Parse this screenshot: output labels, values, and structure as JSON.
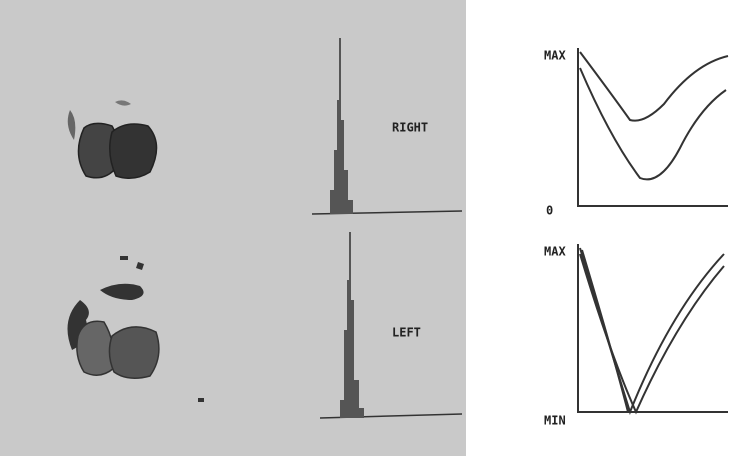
{
  "panels": {
    "right_label": "RIGHT",
    "left_label": "LEFT"
  },
  "top_plot": {
    "max_label": "MAX",
    "min_label": "0"
  },
  "bottom_plot": {
    "max_label": "MAX",
    "min_label": "MIN"
  }
}
